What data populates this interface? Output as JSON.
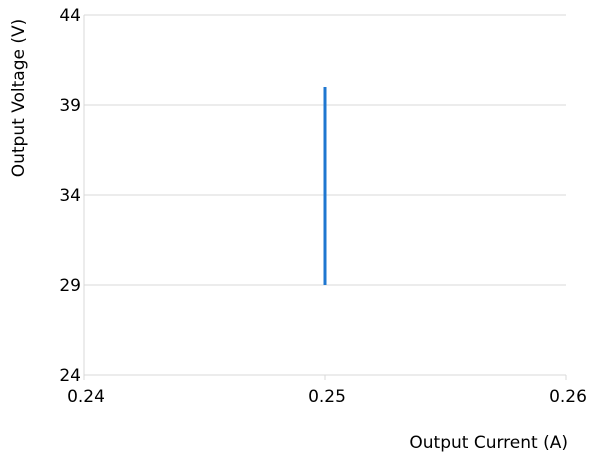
{
  "chart_data": {
    "type": "line",
    "title": "",
    "xlabel": "Output Current (A)",
    "ylabel": "Output Voltage (V)",
    "xlim": [
      0.24,
      0.26
    ],
    "ylim": [
      24,
      44
    ],
    "x_ticks": [
      "0.24",
      "0.25",
      "0.26"
    ],
    "y_ticks": [
      "24",
      "29",
      "34",
      "39",
      "44"
    ],
    "grid": true,
    "legend": "none",
    "series": [
      {
        "color": "#1f77d0",
        "x": [
          0.25,
          0.25
        ],
        "y": [
          29,
          40
        ]
      }
    ]
  }
}
